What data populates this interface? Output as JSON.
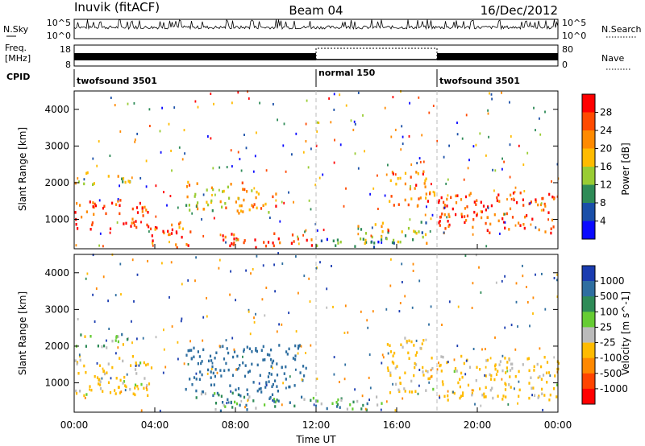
{
  "header": {
    "station": "Inuvik (fitACF)",
    "beam": "Beam 04",
    "date": "16/Dec/2012"
  },
  "noise_panel": {
    "left_label": "N.Sky",
    "right_label": "N.Search",
    "y_ticks_left": [
      "10^5",
      "10^0"
    ],
    "y_ticks_right": [
      "10^5",
      "10^0"
    ]
  },
  "freq_panel": {
    "label_line1": "Freq.",
    "label_line2": "[MHz]",
    "y_ticks_left": [
      "18",
      "8"
    ],
    "right_label": "Nave",
    "y_ticks_right": [
      "80",
      "0"
    ]
  },
  "cpid": {
    "label": "CPID",
    "segments": [
      {
        "name": "twofsound 3501",
        "start_h": 0,
        "end_h": 12
      },
      {
        "name": "normal 150",
        "start_h": 12,
        "end_h": 18
      },
      {
        "name": "twofsound 3501",
        "start_h": 18,
        "end_h": 24
      }
    ]
  },
  "x_axis": {
    "label": "Time UT",
    "ticks": [
      "00:00",
      "04:00",
      "08:00",
      "12:00",
      "16:00",
      "20:00",
      "00:00"
    ]
  },
  "power_panel": {
    "ylabel": "Slant Range [km]",
    "colorbar_label": "Power [dB]",
    "colorbar_ticks": [
      "28",
      "24",
      "20",
      "16",
      "12",
      "8",
      "4"
    ],
    "colors": [
      "#ff0000",
      "#ff4a00",
      "#ff8a00",
      "#ffbb00",
      "#99cc33",
      "#2e8b57",
      "#1a4fa8",
      "#0a0aff"
    ]
  },
  "velocity_panel": {
    "ylabel": "Slant Range [km]",
    "colorbar_label": "Velocity [m s^-1]",
    "colorbar_ticks": [
      "1000",
      "500",
      "100",
      "25",
      "-25",
      "-100",
      "-500",
      "-1000"
    ],
    "colors": [
      "#1a3cb0",
      "#2e6ea0",
      "#2e8b57",
      "#66cc33",
      "#bbbbbb",
      "#ffbb00",
      "#ff8800",
      "#ff4400",
      "#ff0000"
    ]
  },
  "chart_data": [
    {
      "type": "heatmap",
      "title": "Power",
      "xlabel": "Time UT",
      "ylabel": "Slant Range [km]",
      "x_range_h": [
        0,
        24
      ],
      "ylim": [
        200,
        4500
      ],
      "y_ticks": [
        1000,
        2000,
        3000,
        4000
      ],
      "color_range": [
        0,
        32
      ],
      "blobs": [
        {
          "t0": 0.0,
          "t1": 3.8,
          "r0": 700,
          "r1": 1500,
          "v": 27
        },
        {
          "t0": 0.0,
          "t1": 2.8,
          "r0": 1900,
          "r1": 2250,
          "v": 17
        },
        {
          "t0": 3.6,
          "t1": 5.8,
          "r0": 200,
          "r1": 900,
          "v": 26
        },
        {
          "t0": 5.5,
          "t1": 8.5,
          "r0": 1200,
          "r1": 2000,
          "v": 18
        },
        {
          "t0": 8.0,
          "t1": 10.0,
          "r0": 1100,
          "r1": 1800,
          "v": 22
        },
        {
          "t0": 7.2,
          "t1": 11.8,
          "r0": 200,
          "r1": 600,
          "v": 28
        },
        {
          "t0": 15.6,
          "t1": 17.9,
          "r0": 1300,
          "r1": 2300,
          "v": 23
        },
        {
          "t0": 18.0,
          "t1": 24.0,
          "r0": 600,
          "r1": 1700,
          "v": 27
        },
        {
          "t0": 12.0,
          "t1": 15.5,
          "r0": 200,
          "r1": 500,
          "v": 8
        },
        {
          "t0": 14.0,
          "t1": 17.5,
          "r0": 300,
          "r1": 900,
          "v": 14
        }
      ]
    },
    {
      "type": "heatmap",
      "title": "Velocity",
      "xlabel": "Time UT",
      "ylabel": "Slant Range [km]",
      "x_range_h": [
        0,
        24
      ],
      "ylim": [
        200,
        4500
      ],
      "y_ticks": [
        1000,
        2000,
        3000,
        4000
      ],
      "color_range": [
        -1000,
        1000
      ],
      "blobs": [
        {
          "t0": 0.0,
          "t1": 3.8,
          "r0": 600,
          "r1": 1700,
          "v": -150
        },
        {
          "t0": 0.0,
          "t1": 2.8,
          "r0": 1900,
          "r1": 2300,
          "v": 0
        },
        {
          "t0": 5.5,
          "t1": 11.5,
          "r0": 700,
          "r1": 2000,
          "v": 250
        },
        {
          "t0": 6.0,
          "t1": 12.0,
          "r0": 200,
          "r1": 700,
          "v": 80
        },
        {
          "t0": 15.5,
          "t1": 17.8,
          "r0": 700,
          "r1": 2200,
          "v": -150
        },
        {
          "t0": 18.0,
          "t1": 24.0,
          "r0": 500,
          "r1": 1700,
          "v": -150
        },
        {
          "t0": 12.0,
          "t1": 15.5,
          "r0": 200,
          "r1": 600,
          "v": 60
        }
      ]
    }
  ]
}
